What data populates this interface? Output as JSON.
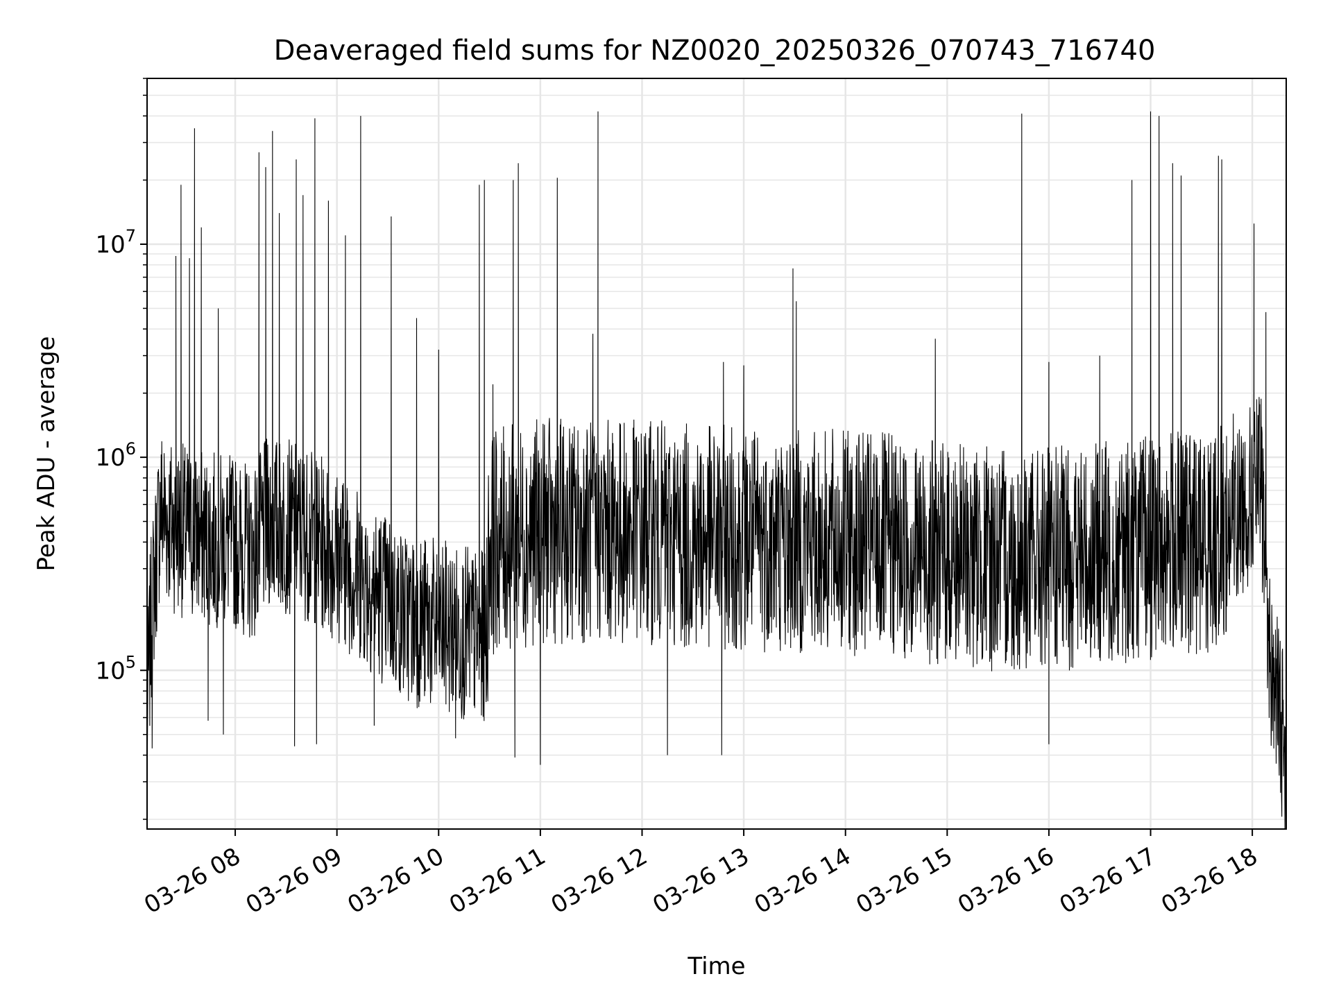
{
  "chart_data": {
    "type": "line",
    "title": "Deaveraged field sums for NZ0020_20250326_070743_716740",
    "xlabel": "Time",
    "ylabel": "Peak ADU - average",
    "y_scale": "log",
    "grid": true,
    "legend": "none",
    "line_color": "#000000",
    "grid_color": "#e6e6e6",
    "xlim": [
      "2025-03-26 07:08",
      "2025-03-26 18:20"
    ],
    "ylim": [
      18000,
      60000000
    ],
    "x_ticks": [
      {
        "time": "2025-03-26 08:00",
        "label": "03-26 08"
      },
      {
        "time": "2025-03-26 09:00",
        "label": "03-26 09"
      },
      {
        "time": "2025-03-26 10:00",
        "label": "03-26 10"
      },
      {
        "time": "2025-03-26 11:00",
        "label": "03-26 11"
      },
      {
        "time": "2025-03-26 12:00",
        "label": "03-26 12"
      },
      {
        "time": "2025-03-26 13:00",
        "label": "03-26 13"
      },
      {
        "time": "2025-03-26 14:00",
        "label": "03-26 14"
      },
      {
        "time": "2025-03-26 15:00",
        "label": "03-26 15"
      },
      {
        "time": "2025-03-26 16:00",
        "label": "03-26 16"
      },
      {
        "time": "2025-03-26 17:00",
        "label": "03-26 17"
      },
      {
        "time": "2025-03-26 18:00",
        "label": "03-26 18"
      }
    ],
    "y_ticks": [
      {
        "value": 100000,
        "base": "10",
        "exp": "5"
      },
      {
        "value": 1000000,
        "base": "10",
        "exp": "6"
      },
      {
        "value": 10000000,
        "base": "10",
        "exp": "7"
      }
    ],
    "series": [
      {
        "points": [
          [
            "2025-03-26 07:08",
            60000
          ],
          [
            "2025-03-26 07:10",
            150000
          ],
          [
            "2025-03-26 07:12",
            250000
          ],
          [
            "2025-03-26 07:14",
            400000
          ],
          [
            "2025-03-26 07:16",
            600000
          ],
          [
            "2025-03-26 07:20",
            500000
          ],
          [
            "2025-03-26 07:30",
            450000
          ],
          [
            "2025-03-26 07:40",
            420000
          ],
          [
            "2025-03-26 08:00",
            400000
          ],
          [
            "2025-03-26 08:10",
            350000
          ],
          [
            "2025-03-26 08:20",
            500000
          ],
          [
            "2025-03-26 08:40",
            450000
          ],
          [
            "2025-03-26 09:00",
            350000
          ],
          [
            "2025-03-26 09:20",
            250000
          ],
          [
            "2025-03-26 09:40",
            180000
          ],
          [
            "2025-03-26 10:00",
            160000
          ],
          [
            "2025-03-26 10:15",
            150000
          ],
          [
            "2025-03-26 10:28",
            140000
          ],
          [
            "2025-03-26 10:30",
            400000
          ],
          [
            "2025-03-26 11:00",
            450000
          ],
          [
            "2025-03-26 11:30",
            450000
          ],
          [
            "2025-03-26 12:00",
            450000
          ],
          [
            "2025-03-26 12:30",
            420000
          ],
          [
            "2025-03-26 13:00",
            420000
          ],
          [
            "2025-03-26 13:30",
            400000
          ],
          [
            "2025-03-26 14:00",
            400000
          ],
          [
            "2025-03-26 14:30",
            380000
          ],
          [
            "2025-03-26 15:00",
            350000
          ],
          [
            "2025-03-26 15:30",
            330000
          ],
          [
            "2025-03-26 16:00",
            330000
          ],
          [
            "2025-03-26 16:30",
            350000
          ],
          [
            "2025-03-26 17:00",
            380000
          ],
          [
            "2025-03-26 17:30",
            400000
          ],
          [
            "2025-03-26 17:45",
            450000
          ],
          [
            "2025-03-26 17:55",
            600000
          ],
          [
            "2025-03-26 18:05",
            800000
          ],
          [
            "2025-03-26 18:08",
            300000
          ],
          [
            "2025-03-26 18:10",
            120000
          ],
          [
            "2025-03-26 18:14",
            80000
          ],
          [
            "2025-03-26 18:18",
            50000
          ],
          [
            "2025-03-26 18:20",
            25000
          ]
        ],
        "spikes": [
          [
            "2025-03-26 07:25",
            8800000
          ],
          [
            "2025-03-26 07:28",
            19000000
          ],
          [
            "2025-03-26 07:33",
            8600000
          ],
          [
            "2025-03-26 07:36",
            35000000
          ],
          [
            "2025-03-26 07:40",
            12000000
          ],
          [
            "2025-03-26 07:50",
            5000000
          ],
          [
            "2025-03-26 08:14",
            27000000
          ],
          [
            "2025-03-26 08:18",
            23000000
          ],
          [
            "2025-03-26 08:22",
            34000000
          ],
          [
            "2025-03-26 08:26",
            14000000
          ],
          [
            "2025-03-26 08:36",
            25000000
          ],
          [
            "2025-03-26 08:40",
            17000000
          ],
          [
            "2025-03-26 08:47",
            39000000
          ],
          [
            "2025-03-26 08:55",
            16000000
          ],
          [
            "2025-03-26 09:05",
            11000000
          ],
          [
            "2025-03-26 09:14",
            40000000
          ],
          [
            "2025-03-26 09:32",
            13500000
          ],
          [
            "2025-03-26 09:47",
            4500000
          ],
          [
            "2025-03-26 10:00",
            3200000
          ],
          [
            "2025-03-26 10:24",
            19000000
          ],
          [
            "2025-03-26 10:27",
            20000000
          ],
          [
            "2025-03-26 10:32",
            2200000
          ],
          [
            "2025-03-26 10:44",
            20000000
          ],
          [
            "2025-03-26 10:47",
            24000000
          ],
          [
            "2025-03-26 11:10",
            20500000
          ],
          [
            "2025-03-26 11:31",
            3800000
          ],
          [
            "2025-03-26 11:34",
            42000000
          ],
          [
            "2025-03-26 12:48",
            2800000
          ],
          [
            "2025-03-26 13:00",
            2700000
          ],
          [
            "2025-03-26 13:29",
            7700000
          ],
          [
            "2025-03-26 13:31",
            5400000
          ],
          [
            "2025-03-26 14:53",
            3600000
          ],
          [
            "2025-03-26 15:44",
            41000000
          ],
          [
            "2025-03-26 16:00",
            2800000
          ],
          [
            "2025-03-26 16:30",
            3000000
          ],
          [
            "2025-03-26 16:49",
            20000000
          ],
          [
            "2025-03-26 17:00",
            42000000
          ],
          [
            "2025-03-26 17:05",
            40000000
          ],
          [
            "2025-03-26 17:13",
            24000000
          ],
          [
            "2025-03-26 17:18",
            21000000
          ],
          [
            "2025-03-26 17:40",
            26000000
          ],
          [
            "2025-03-26 17:42",
            25000000
          ],
          [
            "2025-03-26 18:01",
            12500000
          ],
          [
            "2025-03-26 18:08",
            4800000
          ]
        ],
        "dips": [
          [
            "2025-03-26 07:11",
            43000
          ],
          [
            "2025-03-26 07:44",
            58000
          ],
          [
            "2025-03-26 07:53",
            50000
          ],
          [
            "2025-03-26 08:35",
            44000
          ],
          [
            "2025-03-26 08:48",
            45000
          ],
          [
            "2025-03-26 09:22",
            55000
          ],
          [
            "2025-03-26 10:10",
            48000
          ],
          [
            "2025-03-26 10:45",
            39000
          ],
          [
            "2025-03-26 11:00",
            36000
          ],
          [
            "2025-03-26 12:15",
            40000
          ],
          [
            "2025-03-26 12:47",
            40000
          ],
          [
            "2025-03-26 16:00",
            45000
          ],
          [
            "2025-03-26 18:16",
            49000
          ]
        ]
      }
    ]
  }
}
